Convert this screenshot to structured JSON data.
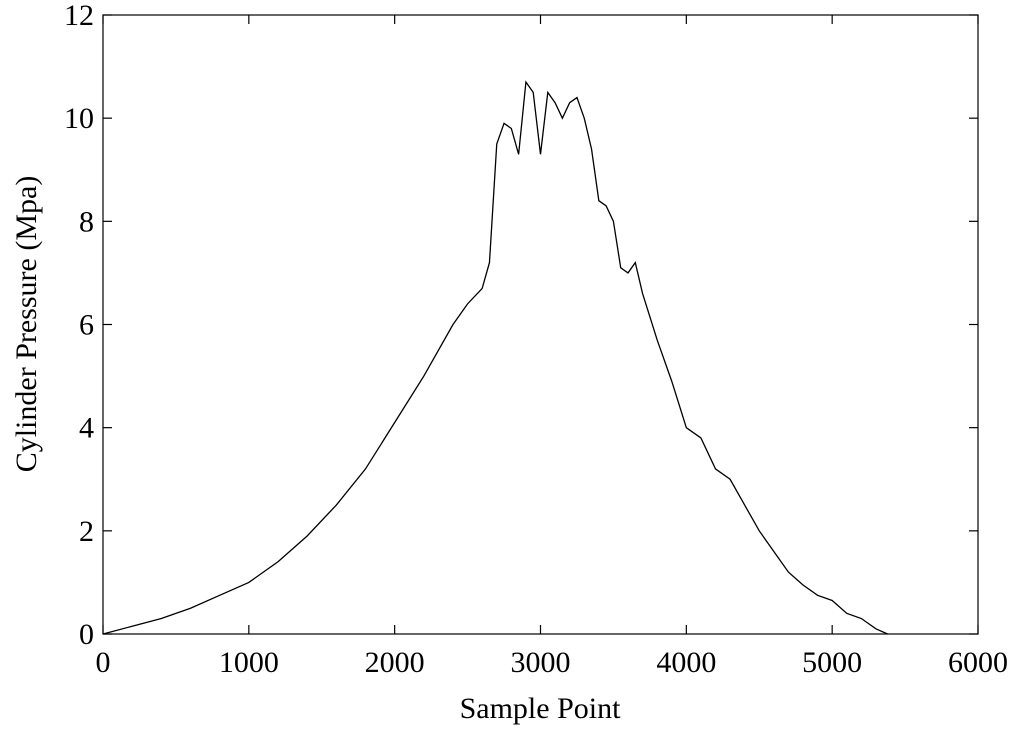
{
  "chart_data": {
    "type": "line",
    "x_label": "Sample Point",
    "y_label": "Cylinder Pressure (Mpa)",
    "x": [
      0,
      200,
      400,
      600,
      800,
      1000,
      1200,
      1400,
      1600,
      1800,
      2000,
      2200,
      2400,
      2500,
      2600,
      2650,
      2700,
      2750,
      2800,
      2850,
      2900,
      2950,
      3000,
      3050,
      3100,
      3150,
      3200,
      3250,
      3300,
      3350,
      3400,
      3450,
      3500,
      3550,
      3600,
      3650,
      3700,
      3800,
      3900,
      4000,
      4100,
      4200,
      4300,
      4400,
      4500,
      4600,
      4700,
      4800,
      4900,
      5000,
      5100,
      5200,
      5300,
      5380
    ],
    "series": [
      {
        "color": "#000000",
        "values": [
          0,
          0.15,
          0.3,
          0.5,
          0.75,
          1.0,
          1.4,
          1.9,
          2.5,
          3.2,
          4.1,
          5.0,
          6.0,
          6.4,
          6.7,
          7.2,
          9.5,
          9.9,
          9.8,
          9.3,
          10.7,
          10.5,
          9.3,
          10.5,
          10.3,
          10.0,
          10.3,
          10.4,
          10.0,
          9.4,
          8.4,
          8.3,
          8.0,
          7.1,
          7.0,
          7.2,
          6.6,
          5.7,
          4.9,
          4.0,
          3.8,
          3.2,
          3.0,
          2.5,
          2.0,
          1.6,
          1.2,
          0.95,
          0.75,
          0.65,
          0.4,
          0.3,
          0.1,
          0
        ]
      }
    ],
    "xlim": [
      0,
      6000
    ],
    "xticks": [
      0,
      1000,
      2000,
      3000,
      4000,
      5000,
      6000
    ],
    "ylim": [
      0,
      12
    ],
    "yticks": [
      0,
      2,
      4,
      6,
      8,
      10,
      12
    ],
    "grid": false
  }
}
